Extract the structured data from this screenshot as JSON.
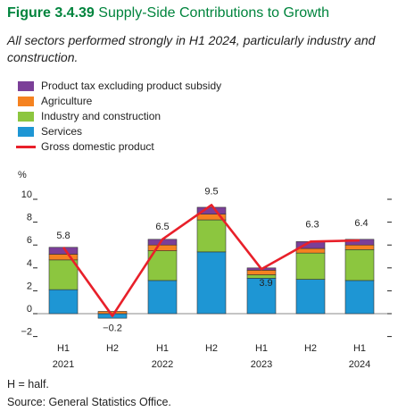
{
  "figure": {
    "number": "Figure 3.4.39",
    "title": "Supply-Side Contributions to Growth",
    "subtitle": "All sectors performed strongly in H1 2024, particularly industry and construction."
  },
  "notes": {
    "half": "H = half.",
    "source": "Source: General Statistics Office."
  },
  "chart_data": {
    "type": "bar",
    "stacked": true,
    "unit_label": "%",
    "categories": [
      "H1",
      "H2",
      "H1",
      "H2",
      "H1",
      "H2",
      "H1"
    ],
    "years": [
      "2021",
      "2022",
      "2023",
      "2024"
    ],
    "year_under_category": [
      0,
      2,
      4,
      6
    ],
    "ylim": [
      -2,
      10
    ],
    "yticks": [
      -2,
      0,
      2,
      4,
      6,
      8,
      10
    ],
    "series": [
      {
        "name": "Services",
        "color": "#1e96d4",
        "values": [
          2.1,
          -0.4,
          2.9,
          5.4,
          3.1,
          3.0,
          2.9
        ]
      },
      {
        "name": "Industry and construction",
        "color": "#8cc63f",
        "values": [
          2.6,
          0.0,
          2.6,
          2.8,
          0.3,
          2.3,
          2.7
        ]
      },
      {
        "name": "Agriculture",
        "color": "#f58220",
        "values": [
          0.5,
          0.2,
          0.5,
          0.5,
          0.4,
          0.4,
          0.4
        ]
      },
      {
        "name": "Product tax excluding product subsidy",
        "color": "#7b3f98",
        "values": [
          0.6,
          0.0,
          0.5,
          0.6,
          0.2,
          0.6,
          0.5
        ]
      }
    ],
    "line_series": {
      "name": "Gross domestic product",
      "color": "#e8202a",
      "values": [
        5.8,
        -0.2,
        6.5,
        9.5,
        3.9,
        6.3,
        6.4
      ]
    },
    "data_labels": [
      "5.8",
      "−0.2",
      "6.5",
      "9.5",
      "3.9",
      "6.3",
      "6.4"
    ],
    "legend_order": [
      "Product tax excluding product subsidy",
      "Agriculture",
      "Industry and construction",
      "Services",
      "Gross domestic product"
    ]
  }
}
